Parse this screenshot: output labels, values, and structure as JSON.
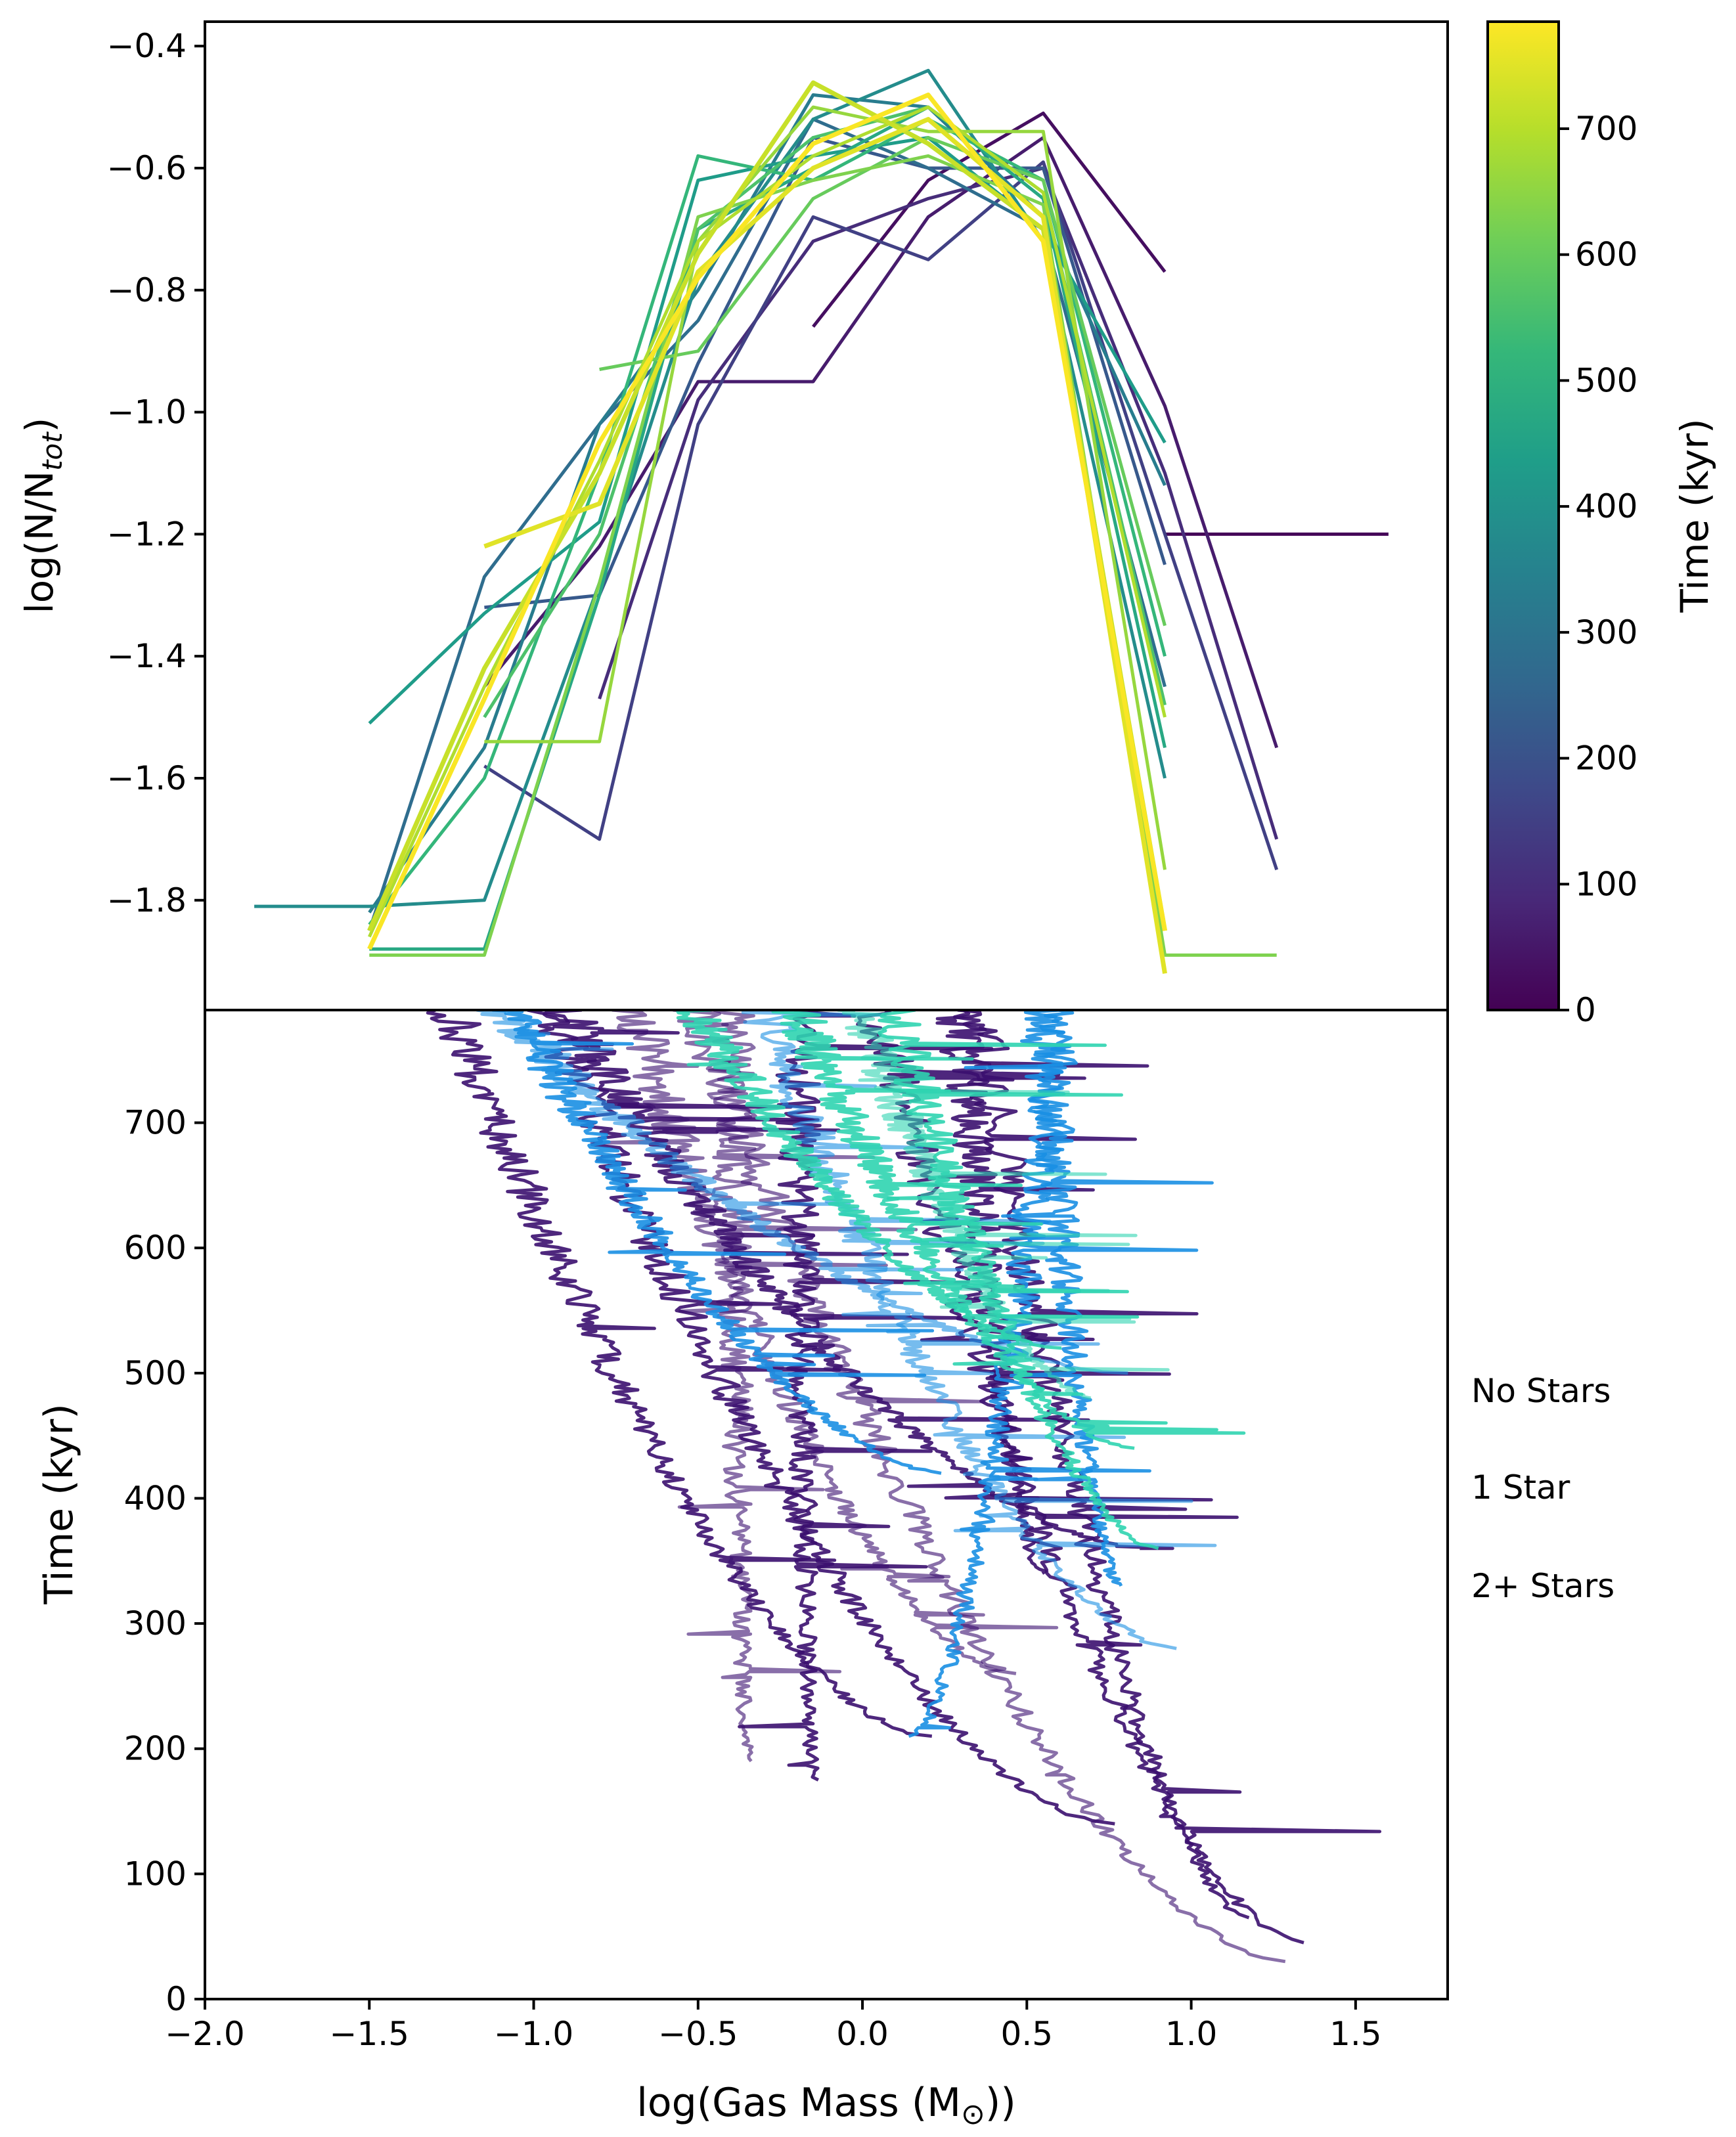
{
  "colors": {
    "no_stars": "#3b0f6f",
    "one_star": "#1a8fe3",
    "two_plus_stars": "#2fd4b0",
    "viridis": [
      "#440154",
      "#482878",
      "#3e4989",
      "#31688e",
      "#26828e",
      "#1f9e89",
      "#35b779",
      "#6ece58",
      "#b5de2b",
      "#fde725"
    ]
  },
  "chart_data": [
    {
      "type": "line",
      "panel": "top",
      "title": "",
      "xlabel": "",
      "ylabel": "log(N/N",
      "ylabel_sub": "tot",
      "ylabel_end": ")",
      "xlim": [
        -2.0,
        1.78
      ],
      "ylim": [
        -1.98,
        -0.36
      ],
      "yticks": [
        -0.4,
        -0.6,
        -0.8,
        -1.0,
        -1.2,
        -1.4,
        -1.6,
        -1.8
      ],
      "ytick_labels": [
        "−0.4",
        "−0.6",
        "−0.8",
        "−1.0",
        "−1.2",
        "−1.4",
        "−1.6",
        "−1.8"
      ],
      "x_bins": [
        -1.85,
        -1.5,
        -1.15,
        -0.8,
        -0.5,
        -0.15,
        0.2,
        0.55,
        0.92,
        1.26,
        1.6
      ],
      "series": [
        {
          "time": 10,
          "x": [
            0.92,
            1.6
          ],
          "y": [
            -1.2,
            -1.2
          ]
        },
        {
          "time": 30,
          "x": [
            -0.15,
            0.2,
            0.55,
            0.92
          ],
          "y": [
            -0.86,
            -0.62,
            -0.51,
            -0.77
          ]
        },
        {
          "time": 60,
          "x": [
            -1.15,
            -0.8,
            -0.5,
            -0.15,
            0.2,
            0.55,
            0.92,
            1.26
          ],
          "y": [
            -1.45,
            -1.22,
            -0.95,
            -0.95,
            -0.68,
            -0.55,
            -0.99,
            -1.55
          ]
        },
        {
          "time": 100,
          "x": [
            -0.8,
            -0.5,
            -0.15,
            0.2,
            0.55,
            0.92,
            1.26
          ],
          "y": [
            -1.47,
            -0.98,
            -0.72,
            -0.65,
            -0.6,
            -1.1,
            -1.7
          ]
        },
        {
          "time": 150,
          "x": [
            -1.15,
            -0.8,
            -0.5,
            -0.15,
            0.2,
            0.55,
            0.92,
            1.26
          ],
          "y": [
            -1.58,
            -1.7,
            -1.02,
            -0.68,
            -0.75,
            -0.59,
            -1.2,
            -1.75
          ]
        },
        {
          "time": 220,
          "x": [
            -1.15,
            -0.8,
            -0.5,
            -0.15,
            0.2,
            0.55,
            0.92
          ],
          "y": [
            -1.32,
            -1.3,
            -0.92,
            -0.55,
            -0.6,
            -0.6,
            -1.25
          ]
        },
        {
          "time": 280,
          "x": [
            -1.5,
            -1.15,
            -0.8,
            -0.5,
            -0.15,
            0.2,
            0.55,
            0.92
          ],
          "y": [
            -1.85,
            -1.27,
            -1.02,
            -0.85,
            -0.52,
            -0.6,
            -0.7,
            -1.45
          ]
        },
        {
          "time": 330,
          "x": [
            -1.5,
            -1.15,
            -0.8,
            -0.5,
            -0.15,
            0.2,
            0.55,
            0.92
          ],
          "y": [
            -1.82,
            -1.55,
            -1.02,
            -0.8,
            -0.48,
            -0.5,
            -0.68,
            -1.12
          ]
        },
        {
          "time": 380,
          "x": [
            -1.85,
            -1.5,
            -1.15,
            -0.8,
            -0.5,
            -0.15,
            0.2,
            0.55,
            0.92
          ],
          "y": [
            -1.81,
            -1.81,
            -1.8,
            -1.28,
            -0.78,
            -0.52,
            -0.44,
            -0.72,
            -1.6
          ]
        },
        {
          "time": 430,
          "x": [
            -1.5,
            -1.15,
            -0.8,
            -0.5,
            -0.15,
            0.2,
            0.55,
            0.92
          ],
          "y": [
            -1.51,
            -1.33,
            -1.18,
            -0.62,
            -0.58,
            -0.55,
            -0.7,
            -1.05
          ]
        },
        {
          "time": 470,
          "x": [
            -1.5,
            -1.15,
            -0.8,
            -0.5,
            -0.15,
            0.2,
            0.55,
            0.92
          ],
          "y": [
            -1.88,
            -1.88,
            -1.3,
            -0.7,
            -0.6,
            -0.5,
            -0.65,
            -1.55
          ]
        },
        {
          "time": 520,
          "x": [
            -1.5,
            -1.15,
            -0.8,
            -0.5,
            -0.15,
            0.2,
            0.55,
            0.92
          ],
          "y": [
            -1.84,
            -1.6,
            -1.1,
            -0.58,
            -0.62,
            -0.52,
            -0.62,
            -1.4
          ]
        },
        {
          "time": 560,
          "x": [
            -1.15,
            -0.8,
            -0.5,
            -0.15,
            0.2,
            0.55,
            0.92
          ],
          "y": [
            -1.5,
            -1.2,
            -0.7,
            -0.55,
            -0.5,
            -0.64,
            -1.48
          ]
        },
        {
          "time": 600,
          "x": [
            -0.8,
            -0.5,
            -0.15,
            0.2,
            0.55,
            0.92
          ],
          "y": [
            -0.93,
            -0.9,
            -0.65,
            -0.55,
            -0.62,
            -1.35
          ]
        },
        {
          "time": 630,
          "x": [
            -1.5,
            -1.15,
            -0.8,
            -0.5,
            -0.15,
            0.2,
            0.55,
            0.92,
            1.26
          ],
          "y": [
            -1.89,
            -1.89,
            -1.28,
            -0.68,
            -0.62,
            -0.58,
            -0.66,
            -1.89,
            -1.89
          ]
        },
        {
          "time": 660,
          "x": [
            -1.15,
            -0.8,
            -0.5,
            -0.15,
            0.2,
            0.55,
            0.92
          ],
          "y": [
            -1.54,
            -1.54,
            -0.72,
            -0.5,
            -0.54,
            -0.54,
            -1.75
          ]
        },
        {
          "time": 690,
          "x": [
            -1.5,
            -1.15,
            -0.8,
            -0.5,
            -0.15,
            0.2,
            0.55,
            0.92
          ],
          "y": [
            -1.86,
            -1.45,
            -1.08,
            -0.72,
            -0.58,
            -0.5,
            -0.64,
            -1.5
          ]
        },
        {
          "time": 720,
          "x": [
            -1.5,
            -1.15,
            -0.8,
            -0.5,
            -0.15,
            0.2,
            0.55,
            0.92
          ],
          "y": [
            -1.85,
            -1.42,
            -1.1,
            -0.74,
            -0.46,
            -0.56,
            -0.7,
            -1.85
          ]
        },
        {
          "time": 750,
          "x": [
            -1.15,
            -0.8,
            -0.5,
            -0.15,
            0.2,
            0.55,
            0.92
          ],
          "y": [
            -1.22,
            -1.15,
            -0.77,
            -0.6,
            -0.52,
            -0.68,
            -1.92
          ]
        },
        {
          "time": 780,
          "x": [
            -1.5,
            -1.15,
            -0.8,
            -0.5,
            -0.15,
            0.2,
            0.55,
            0.92
          ],
          "y": [
            -1.88,
            -1.47,
            -1.05,
            -0.78,
            -0.56,
            -0.48,
            -0.72,
            -1.85
          ]
        }
      ]
    },
    {
      "type": "line",
      "panel": "bottom",
      "title": "",
      "xlabel": "log(Gas Mass (M",
      "xlabel_sub": "⊙",
      "xlabel_end": "))",
      "ylabel": "Time (kyr)",
      "xlim": [
        -2.0,
        1.78
      ],
      "ylim": [
        0,
        790
      ],
      "xticks": [
        -2.0,
        -1.5,
        -1.0,
        -0.5,
        0.0,
        0.5,
        1.0,
        1.5
      ],
      "xtick_labels": [
        "−2.0",
        "−1.5",
        "−1.0",
        "−0.5",
        "0.0",
        "0.5",
        "1.0",
        "1.5"
      ],
      "yticks": [
        0,
        100,
        200,
        300,
        400,
        500,
        600,
        700
      ],
      "ytick_labels": [
        "0",
        "100",
        "200",
        "300",
        "400",
        "500",
        "600",
        "700"
      ],
      "legend": [
        {
          "label": "No Stars",
          "color": "#3b0f6f"
        },
        {
          "label": "1 Star",
          "color": "#1a8fe3"
        },
        {
          "label": "2+ Stars",
          "color": "#2fd4b0"
        }
      ],
      "tracks": [
        {
          "category": "no_stars",
          "t0": 65,
          "x0": 1.17,
          "x1": 0.35
        },
        {
          "category": "no_stars",
          "t0": 45,
          "x0": 1.34,
          "x1": 0.05
        },
        {
          "category": "no_stars",
          "t0": 30,
          "x0": 1.28,
          "x1": -0.5
        },
        {
          "category": "no_stars",
          "t0": 140,
          "x0": 0.75,
          "x1": -0.95
        },
        {
          "category": "no_stars",
          "t0": 175,
          "x0": -0.15,
          "x1": -0.2
        },
        {
          "category": "no_stars",
          "t0": 190,
          "x0": -0.35,
          "x1": -0.4
        },
        {
          "category": "no_stars",
          "t0": 210,
          "x0": 0.2,
          "x1": -1.25
        },
        {
          "category": "no_stars",
          "t0": 340,
          "x0": 0.55,
          "x1": 0.3
        },
        {
          "category": "no_stars",
          "t0": 260,
          "x0": 0.45,
          "x1": -0.7
        },
        {
          "category": "no_stars",
          "t0": 360,
          "x0": 0.85,
          "x1": -0.9
        },
        {
          "category": "one_star",
          "t0": 210,
          "x0": 0.15,
          "x1": 0.6
        },
        {
          "category": "one_star",
          "t0": 280,
          "x0": 0.95,
          "x1": -0.3
        },
        {
          "category": "one_star",
          "t0": 330,
          "x0": 0.78,
          "x1": 0.55
        },
        {
          "category": "one_star",
          "t0": 420,
          "x0": 0.25,
          "x1": -1.05
        },
        {
          "category": "one_star",
          "t0": 500,
          "x0": 0.8,
          "x1": -1.1
        },
        {
          "category": "two_plus_stars",
          "t0": 360,
          "x0": 0.9,
          "x1": 0.1
        },
        {
          "category": "two_plus_stars",
          "t0": 440,
          "x0": 0.83,
          "x1": -0.2
        },
        {
          "category": "two_plus_stars",
          "t0": 480,
          "x0": 0.7,
          "x1": 0.0
        },
        {
          "category": "two_plus_stars",
          "t0": 520,
          "x0": 0.6,
          "x1": -0.5
        }
      ]
    }
  ],
  "colorbar": {
    "label": "Time (kyr)",
    "range": [
      0,
      785
    ],
    "ticks": [
      0,
      100,
      200,
      300,
      400,
      500,
      600,
      700
    ],
    "tick_labels": [
      "0",
      "100",
      "200",
      "300",
      "400",
      "500",
      "600",
      "700"
    ]
  }
}
